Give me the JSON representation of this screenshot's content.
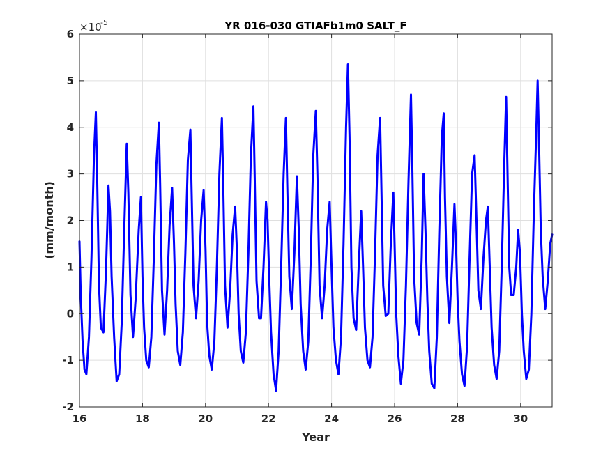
{
  "chart_data": {
    "type": "line",
    "title": "YR 016-030 GTIAFb1m0 SALT_F",
    "xlabel": "Year",
    "ylabel": "(mm/month)",
    "y_exponent_base": "×10",
    "y_exponent_power": "-5",
    "xlim": [
      16,
      31
    ],
    "ylim": [
      -2,
      6
    ],
    "xticks": [
      16,
      18,
      20,
      22,
      24,
      26,
      28,
      30
    ],
    "xtick_labels": [
      "16",
      "18",
      "20",
      "22",
      "24",
      "26",
      "28",
      "30"
    ],
    "yticks": [
      -2,
      -1,
      0,
      1,
      2,
      3,
      4,
      5,
      6
    ],
    "ytick_labels": [
      "-2",
      "-1",
      "0",
      "1",
      "2",
      "3",
      "4",
      "5",
      "6"
    ],
    "grid": true,
    "series": [
      {
        "color": "#0000ff",
        "points": [
          [
            16.0,
            1.55
          ],
          [
            16.04,
            0.4
          ],
          [
            16.1,
            -0.6
          ],
          [
            16.16,
            -1.2
          ],
          [
            16.22,
            -1.3
          ],
          [
            16.3,
            -0.5
          ],
          [
            16.38,
            1.2
          ],
          [
            16.46,
            3.4
          ],
          [
            16.52,
            4.32
          ],
          [
            16.56,
            3.0
          ],
          [
            16.62,
            0.6
          ],
          [
            16.68,
            -0.3
          ],
          [
            16.76,
            -0.4
          ],
          [
            16.84,
            0.9
          ],
          [
            16.92,
            2.75
          ],
          [
            16.97,
            2.2
          ],
          [
            17.02,
            0.8
          ],
          [
            17.1,
            -0.5
          ],
          [
            17.18,
            -1.45
          ],
          [
            17.26,
            -1.3
          ],
          [
            17.34,
            -0.2
          ],
          [
            17.42,
            1.8
          ],
          [
            17.5,
            3.65
          ],
          [
            17.55,
            2.6
          ],
          [
            17.62,
            0.4
          ],
          [
            17.7,
            -0.5
          ],
          [
            17.78,
            0.3
          ],
          [
            17.88,
            1.8
          ],
          [
            17.95,
            2.5
          ],
          [
            18.0,
            0.8
          ],
          [
            18.05,
            -0.3
          ],
          [
            18.12,
            -1.0
          ],
          [
            18.2,
            -1.15
          ],
          [
            18.28,
            -0.5
          ],
          [
            18.36,
            1.2
          ],
          [
            18.44,
            3.2
          ],
          [
            18.52,
            4.1
          ],
          [
            18.56,
            2.8
          ],
          [
            18.62,
            0.5
          ],
          [
            18.7,
            -0.45
          ],
          [
            18.78,
            0.5
          ],
          [
            18.86,
            1.9
          ],
          [
            18.94,
            2.7
          ],
          [
            19.0,
            1.5
          ],
          [
            19.05,
            0.2
          ],
          [
            19.12,
            -0.8
          ],
          [
            19.2,
            -1.1
          ],
          [
            19.28,
            -0.4
          ],
          [
            19.36,
            1.3
          ],
          [
            19.44,
            3.3
          ],
          [
            19.52,
            3.95
          ],
          [
            19.56,
            2.6
          ],
          [
            19.62,
            0.6
          ],
          [
            19.7,
            -0.1
          ],
          [
            19.78,
            0.7
          ],
          [
            19.86,
            2.0
          ],
          [
            19.94,
            2.65
          ],
          [
            20.0,
            1.4
          ],
          [
            20.05,
            -0.2
          ],
          [
            20.12,
            -0.9
          ],
          [
            20.2,
            -1.2
          ],
          [
            20.28,
            -0.6
          ],
          [
            20.36,
            1.0
          ],
          [
            20.44,
            3.0
          ],
          [
            20.52,
            4.2
          ],
          [
            20.56,
            2.9
          ],
          [
            20.62,
            0.6
          ],
          [
            20.7,
            -0.3
          ],
          [
            20.78,
            0.5
          ],
          [
            20.86,
            1.7
          ],
          [
            20.94,
            2.3
          ],
          [
            21.0,
            1.3
          ],
          [
            21.05,
            0.0
          ],
          [
            21.12,
            -0.8
          ],
          [
            21.2,
            -1.05
          ],
          [
            21.28,
            -0.4
          ],
          [
            21.36,
            1.3
          ],
          [
            21.44,
            3.4
          ],
          [
            21.52,
            4.45
          ],
          [
            21.56,
            3.0
          ],
          [
            21.62,
            0.7
          ],
          [
            21.7,
            -0.1
          ],
          [
            21.76,
            -0.1
          ],
          [
            21.84,
            1.0
          ],
          [
            21.92,
            2.4
          ],
          [
            21.97,
            2.0
          ],
          [
            22.02,
            0.8
          ],
          [
            22.08,
            -0.4
          ],
          [
            22.16,
            -1.3
          ],
          [
            22.24,
            -1.65
          ],
          [
            22.32,
            -0.8
          ],
          [
            22.4,
            1.0
          ],
          [
            22.48,
            3.0
          ],
          [
            22.55,
            4.2
          ],
          [
            22.6,
            2.6
          ],
          [
            22.66,
            0.8
          ],
          [
            22.74,
            0.1
          ],
          [
            22.82,
            1.3
          ],
          [
            22.9,
            2.95
          ],
          [
            22.96,
            1.8
          ],
          [
            23.02,
            0.2
          ],
          [
            23.1,
            -0.8
          ],
          [
            23.18,
            -1.2
          ],
          [
            23.26,
            -0.6
          ],
          [
            23.34,
            1.2
          ],
          [
            23.42,
            3.4
          ],
          [
            23.5,
            4.35
          ],
          [
            23.55,
            3.0
          ],
          [
            23.62,
            0.6
          ],
          [
            23.7,
            -0.1
          ],
          [
            23.78,
            0.6
          ],
          [
            23.86,
            1.8
          ],
          [
            23.94,
            2.4
          ],
          [
            24.0,
            1.0
          ],
          [
            24.06,
            -0.3
          ],
          [
            24.14,
            -1.0
          ],
          [
            24.22,
            -1.3
          ],
          [
            24.3,
            -0.5
          ],
          [
            24.38,
            1.5
          ],
          [
            24.46,
            4.0
          ],
          [
            24.52,
            5.35
          ],
          [
            24.57,
            3.8
          ],
          [
            24.63,
            1.0
          ],
          [
            24.7,
            -0.1
          ],
          [
            24.78,
            -0.35
          ],
          [
            24.86,
            1.0
          ],
          [
            24.94,
            2.2
          ],
          [
            25.0,
            1.0
          ],
          [
            25.06,
            -0.3
          ],
          [
            25.14,
            -1.0
          ],
          [
            25.22,
            -1.15
          ],
          [
            25.3,
            -0.5
          ],
          [
            25.38,
            1.3
          ],
          [
            25.46,
            3.4
          ],
          [
            25.54,
            4.2
          ],
          [
            25.58,
            2.8
          ],
          [
            25.64,
            0.6
          ],
          [
            25.72,
            -0.05
          ],
          [
            25.8,
            0.0
          ],
          [
            25.88,
            1.5
          ],
          [
            25.96,
            2.6
          ],
          [
            26.0,
            1.5
          ],
          [
            26.05,
            0.0
          ],
          [
            26.12,
            -0.9
          ],
          [
            26.2,
            -1.5
          ],
          [
            26.28,
            -1.0
          ],
          [
            26.36,
            0.6
          ],
          [
            26.44,
            2.8
          ],
          [
            26.52,
            4.7
          ],
          [
            26.56,
            3.3
          ],
          [
            26.62,
            0.8
          ],
          [
            26.7,
            -0.2
          ],
          [
            26.78,
            -0.45
          ],
          [
            26.86,
            1.2
          ],
          [
            26.92,
            3.0
          ],
          [
            26.98,
            1.8
          ],
          [
            27.04,
            0.3
          ],
          [
            27.1,
            -0.8
          ],
          [
            27.18,
            -1.5
          ],
          [
            27.26,
            -1.6
          ],
          [
            27.34,
            -0.5
          ],
          [
            27.42,
            1.8
          ],
          [
            27.5,
            3.8
          ],
          [
            27.56,
            4.3
          ],
          [
            27.6,
            2.5
          ],
          [
            27.66,
            0.8
          ],
          [
            27.74,
            -0.2
          ],
          [
            27.82,
            1.0
          ],
          [
            27.9,
            2.35
          ],
          [
            27.95,
            1.5
          ],
          [
            28.0,
            0.3
          ],
          [
            28.06,
            -0.6
          ],
          [
            28.14,
            -1.3
          ],
          [
            28.22,
            -1.55
          ],
          [
            28.3,
            -0.7
          ],
          [
            28.38,
            1.2
          ],
          [
            28.46,
            3.0
          ],
          [
            28.54,
            3.4
          ],
          [
            28.6,
            2.0
          ],
          [
            28.66,
            0.5
          ],
          [
            28.74,
            0.1
          ],
          [
            28.82,
            1.2
          ],
          [
            28.9,
            2.0
          ],
          [
            28.96,
            2.3
          ],
          [
            29.02,
            1.0
          ],
          [
            29.08,
            -0.3
          ],
          [
            29.16,
            -1.1
          ],
          [
            29.24,
            -1.4
          ],
          [
            29.32,
            -0.8
          ],
          [
            29.4,
            1.0
          ],
          [
            29.48,
            3.2
          ],
          [
            29.54,
            4.65
          ],
          [
            29.58,
            3.2
          ],
          [
            29.64,
            1.0
          ],
          [
            29.7,
            0.4
          ],
          [
            29.78,
            0.4
          ],
          [
            29.86,
            1.0
          ],
          [
            29.92,
            1.8
          ],
          [
            29.98,
            1.3
          ],
          [
            30.04,
            0.0
          ],
          [
            30.1,
            -0.8
          ],
          [
            30.18,
            -1.4
          ],
          [
            30.26,
            -1.2
          ],
          [
            30.34,
            0.0
          ],
          [
            30.42,
            2.2
          ],
          [
            30.5,
            4.0
          ],
          [
            30.54,
            5.0
          ],
          [
            30.58,
            3.8
          ],
          [
            30.64,
            1.8
          ],
          [
            30.7,
            0.8
          ],
          [
            30.78,
            0.1
          ],
          [
            30.86,
            0.7
          ],
          [
            30.94,
            1.5
          ],
          [
            31.0,
            1.7
          ]
        ]
      }
    ]
  }
}
